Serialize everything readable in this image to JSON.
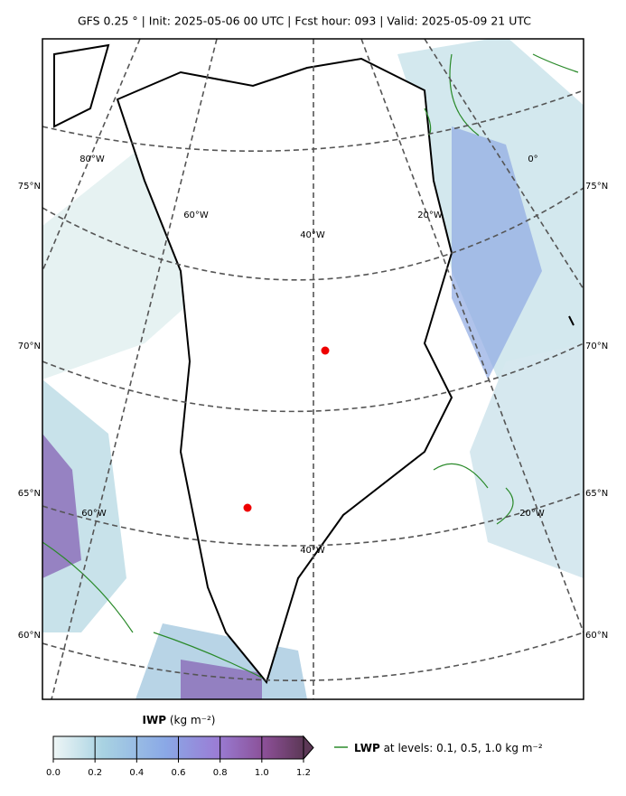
{
  "header": {
    "title": "GFS 0.25 °  |  Init: 2025-05-06 00 UTC  |  Fcst hour: 093  |  Valid: 2025-05-09 21 UTC"
  },
  "map": {
    "meridian_labels": [
      "80°W",
      "60°W",
      "40°W",
      "20°W",
      "0°"
    ],
    "parallel_labels": [
      "75°N",
      "70°N",
      "65°N",
      "60°N"
    ]
  },
  "colorbar": {
    "label_bold": "IWP",
    "label_unit": "(kg m⁻²)",
    "range": [
      0,
      1.2
    ],
    "ticks": [
      {
        "value": 0,
        "label": "0.0"
      },
      0.2,
      0.4,
      0.6,
      0.8,
      {
        "value": 1,
        "label": "1.0"
      },
      1.2
    ]
  },
  "legend": {
    "bold": "LWP",
    "text": "at levels: 0.1, 0.5, 1.0  kg m⁻²"
  }
}
